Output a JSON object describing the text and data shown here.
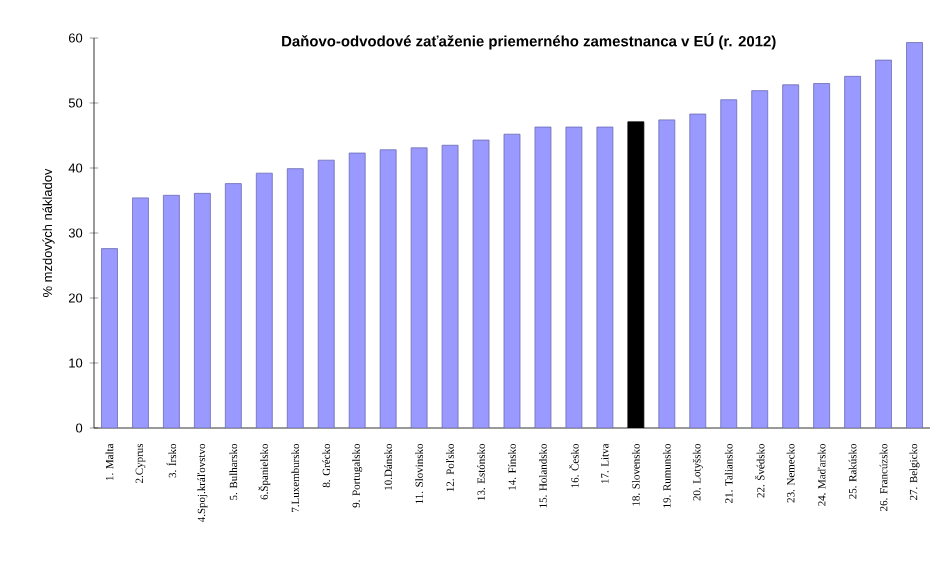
{
  "chart_data": {
    "type": "bar",
    "title": "Daňovo-odvodové  zaťaženie priemerného  zamestnanca  v EÚ  (r. 2012)",
    "ylabel": "% mzdových nákladov",
    "categories": [
      "1. Malta",
      "2.Cyprus",
      "3. Írsko",
      "4.Spoj.kráľovstvo",
      "5. Bulharsko",
      "6.Španielsko",
      "7.Luxembursko",
      "8. Grécko",
      "9. Portugalsko",
      "10.Dánsko",
      "11. Slovinsko",
      "12. Poľsko",
      "13. Estónsko",
      "14. Fínsko",
      "15. Holandsko",
      "16. Česko",
      "17. Litva",
      "18. Slovensko",
      "19. Rumunsko",
      "20. Lotyšsko",
      "21. Taliansko",
      "22. Švédsko",
      "23. Nemecko",
      "24. Maďarsko",
      "25. Rakúsko",
      "26. Francúzsko",
      "27. Belgicko"
    ],
    "values": [
      27.6,
      35.4,
      35.8,
      36.1,
      37.6,
      39.2,
      39.9,
      41.2,
      42.3,
      42.8,
      43.1,
      43.5,
      44.3,
      45.2,
      46.3,
      46.3,
      46.3,
      47.1,
      47.4,
      48.3,
      50.5,
      51.9,
      52.8,
      53.0,
      54.1,
      56.6,
      59.3
    ],
    "colors": [
      "#9999ff",
      "#9999ff",
      "#9999ff",
      "#9999ff",
      "#9999ff",
      "#9999ff",
      "#9999ff",
      "#9999ff",
      "#9999ff",
      "#9999ff",
      "#9999ff",
      "#9999ff",
      "#9999ff",
      "#9999ff",
      "#9999ff",
      "#9999ff",
      "#9999ff",
      "#000000",
      "#9999ff",
      "#9999ff",
      "#9999ff",
      "#9999ff",
      "#9999ff",
      "#9999ff",
      "#9999ff",
      "#9999ff",
      "#9999ff"
    ],
    "ylim": [
      0,
      60
    ],
    "yticks": [
      0,
      10,
      20,
      30,
      40,
      50,
      60
    ],
    "grid": false
  }
}
